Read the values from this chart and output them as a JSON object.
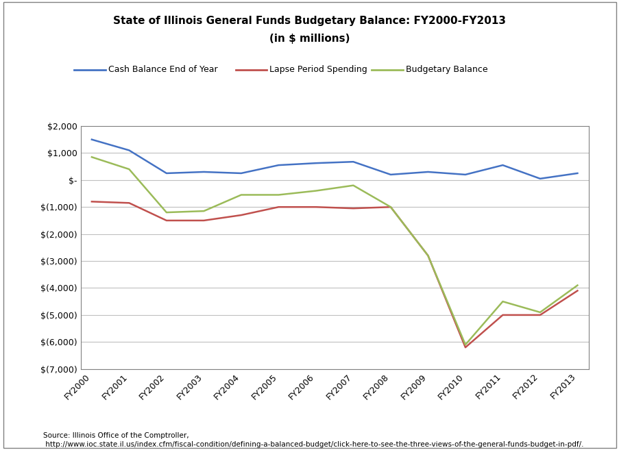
{
  "title_line1": "State of Illinois General Funds Budgetary Balance: FY2000-FY2013",
  "title_line2": "(in $ millions)",
  "years": [
    "FY2000",
    "FY2001",
    "FY2002",
    "FY2003",
    "FY2004",
    "FY2005",
    "FY2006",
    "FY2007",
    "FY2008",
    "FY2009",
    "FY2010",
    "FY2011",
    "FY2012",
    "FY2013"
  ],
  "cash_balance": [
    1500,
    1100,
    250,
    300,
    250,
    550,
    625,
    675,
    200,
    300,
    200,
    550,
    50,
    250
  ],
  "lapse_spending": [
    -800,
    -850,
    -1500,
    -1500,
    -1300,
    -1000,
    -1000,
    -1050,
    -1000,
    -2800,
    -6200,
    -5000,
    -5000,
    -4100
  ],
  "budgetary_balance": [
    850,
    400,
    -1200,
    -1150,
    -550,
    -550,
    -400,
    -200,
    -1000,
    -2800,
    -6100,
    -4500,
    -4900,
    -3900
  ],
  "cash_color": "#4472C4",
  "lapse_color": "#C0504D",
  "budget_color": "#9BBB59",
  "ylim_min": -7000,
  "ylim_max": 2000,
  "yticks": [
    2000,
    1000,
    0,
    -1000,
    -2000,
    -3000,
    -4000,
    -5000,
    -6000,
    -7000
  ],
  "ytick_labels": [
    "$2,000",
    "$1,000",
    "$-",
    "$(1,000)",
    "$(2,000)",
    "$(3,000)",
    "$(4,000)",
    "$(5,000)",
    "$(6,000)",
    "$(7,000)"
  ],
  "legend_labels": [
    "Cash Balance End of Year",
    "Lapse Period Spending",
    "Budgetary Balance"
  ],
  "source_line1": "Source: Illinois Office of the Comptroller,",
  "source_line2": " http://www.ioc.state.il.us/index.cfm/fiscal-condition/defining-a-balanced-budget/click-here-to-see-the-three-views-of-the-general-funds-budget-in-pdf/.",
  "background_color": "#FFFFFF",
  "plot_bg_color": "#FFFFFF",
  "grid_color": "#BFBFBF",
  "line_width": 1.8,
  "border_color": "#808080"
}
